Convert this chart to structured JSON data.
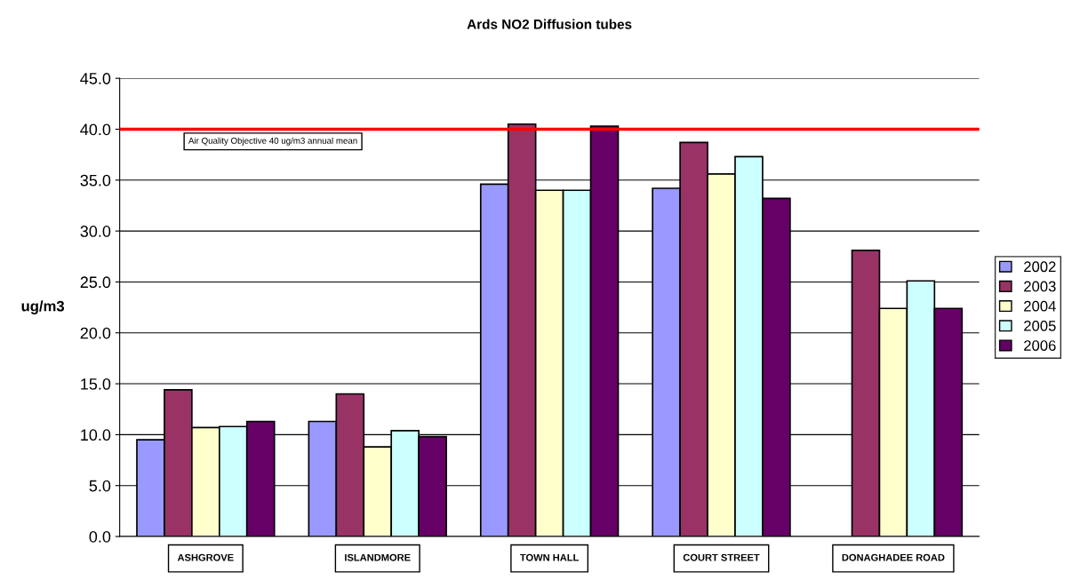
{
  "chart_data": {
    "type": "bar",
    "title": "Ards NO2 Diffusion tubes",
    "ylabel": "ug/m3",
    "categories": [
      "ASHGROVE",
      "ISLANDMORE",
      "TOWN HALL",
      "COURT STREET",
      "DONAGHADEE ROAD"
    ],
    "series": [
      {
        "name": "2002",
        "color": "#9999ff",
        "values": [
          9.5,
          11.3,
          34.6,
          34.2,
          null
        ]
      },
      {
        "name": "2003",
        "color": "#993366",
        "values": [
          14.4,
          14.0,
          40.5,
          38.7,
          28.1
        ]
      },
      {
        "name": "2004",
        "color": "#ffffcc",
        "values": [
          10.7,
          8.8,
          34.0,
          35.6,
          22.4
        ]
      },
      {
        "name": "2005",
        "color": "#ccffff",
        "values": [
          10.8,
          10.4,
          34.0,
          37.3,
          25.1
        ]
      },
      {
        "name": "2006",
        "color": "#660066",
        "values": [
          11.3,
          9.8,
          40.3,
          33.2,
          22.4
        ]
      }
    ],
    "ylim": [
      0,
      45
    ],
    "yticks": [
      {
        "value": 0,
        "label": "0.0"
      },
      {
        "value": 5,
        "label": "5.0"
      },
      {
        "value": 10,
        "label": "10.0"
      },
      {
        "value": 15,
        "label": "15.0"
      },
      {
        "value": 20,
        "label": "20.0"
      },
      {
        "value": 25,
        "label": "25.0"
      },
      {
        "value": 30,
        "label": "30.0"
      },
      {
        "value": 35,
        "label": "35.0"
      },
      {
        "value": 40,
        "label": "40.0"
      },
      {
        "value": 45,
        "label": "45.0"
      }
    ],
    "ref_lines": [
      {
        "axis": "y",
        "value": 40,
        "label": "Air Quality Objective 40 ug/m3 annual mean",
        "color": "#ff0000"
      }
    ],
    "grid": "y",
    "legend": "right"
  }
}
